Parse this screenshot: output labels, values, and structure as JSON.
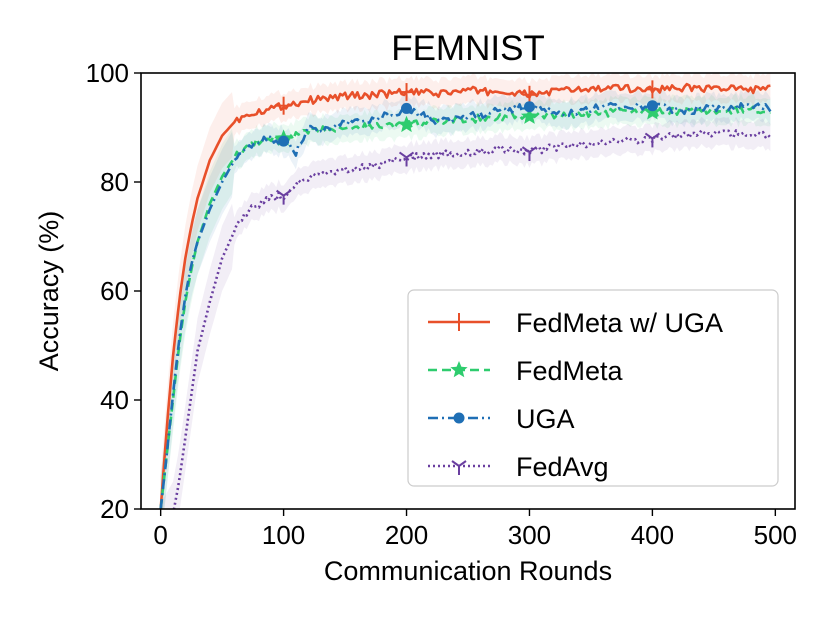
{
  "chart_data": {
    "type": "line",
    "title": "FEMNIST",
    "xlabel": "Communication Rounds",
    "ylabel": "Accuracy (%)",
    "xlim": [
      -16,
      516
    ],
    "ylim": [
      20,
      100
    ],
    "xticks": [
      0,
      100,
      200,
      300,
      400,
      500
    ],
    "yticks": [
      20,
      40,
      60,
      80,
      100
    ],
    "grid": false,
    "legend_position": "lower-right",
    "series": [
      {
        "name": "FedMeta w/ UGA",
        "color": "#e8502a",
        "linestyle": "solid",
        "marker": "plus",
        "marker_x": [
          100,
          200,
          300,
          400
        ],
        "x": [
          0,
          5,
          10,
          15,
          20,
          25,
          30,
          40,
          50,
          60,
          70,
          80,
          90,
          100,
          110,
          120,
          130,
          150,
          175,
          200,
          225,
          250,
          275,
          300,
          325,
          350,
          375,
          400,
          425,
          450,
          475,
          497
        ],
        "y": [
          20,
          35,
          48,
          58,
          66,
          72,
          77,
          84,
          88.5,
          91,
          92.5,
          93,
          93.5,
          94,
          94.5,
          95,
          95.2,
          95.8,
          96,
          96.5,
          96.2,
          96.8,
          96.5,
          96,
          96.8,
          97,
          97.2,
          97,
          97.3,
          97.2,
          97,
          97
        ]
      },
      {
        "name": "FedMeta",
        "color": "#2ecc6e",
        "linestyle": "dashed",
        "marker": "star",
        "marker_x": [
          100,
          200,
          300,
          400
        ],
        "x": [
          0,
          5,
          10,
          15,
          20,
          25,
          30,
          40,
          50,
          60,
          70,
          80,
          90,
          100,
          110,
          125,
          150,
          175,
          200,
          225,
          250,
          275,
          300,
          325,
          350,
          375,
          400,
          425,
          450,
          475,
          497
        ],
        "y": [
          20,
          30,
          40,
          50,
          58,
          64,
          69,
          76,
          81,
          84.5,
          86.5,
          87.5,
          88,
          88,
          88.5,
          89.5,
          90,
          90.3,
          90.5,
          91,
          91.5,
          92,
          92,
          92.3,
          92.5,
          92.8,
          92.8,
          93,
          93,
          93.2,
          93.2
        ]
      },
      {
        "name": "UGA",
        "color": "#1f6fb5",
        "linestyle": "dashdot",
        "marker": "circle",
        "marker_x": [
          100,
          200,
          300,
          400
        ],
        "x": [
          0,
          5,
          10,
          15,
          20,
          25,
          30,
          40,
          50,
          60,
          70,
          80,
          90,
          100,
          110,
          120,
          130,
          150,
          175,
          200,
          225,
          250,
          275,
          300,
          325,
          350,
          375,
          400,
          425,
          450,
          475,
          497
        ],
        "y": [
          20,
          30,
          41,
          51,
          59,
          65,
          69,
          75,
          80,
          84,
          86,
          87.5,
          87.8,
          87.5,
          85.5,
          90,
          89.5,
          91,
          91.5,
          93.5,
          91,
          92,
          93,
          93.8,
          92.5,
          93.5,
          94,
          94,
          93,
          93.5,
          94,
          93.5
        ]
      },
      {
        "name": "FedAvg",
        "color": "#6a3fa0",
        "linestyle": "dotted",
        "marker": "tri-down",
        "marker_x": [
          100,
          200,
          300,
          400
        ],
        "x": [
          0,
          10,
          15,
          20,
          25,
          30,
          40,
          50,
          60,
          70,
          80,
          90,
          100,
          110,
          125,
          150,
          175,
          200,
          225,
          250,
          275,
          300,
          325,
          350,
          375,
          400,
          425,
          450,
          475,
          497
        ],
        "y": [
          15,
          19,
          25,
          33,
          41,
          49,
          58,
          66,
          71,
          74.5,
          76,
          77,
          77.5,
          79.5,
          81,
          82,
          83,
          84.5,
          85,
          85.5,
          86,
          85.5,
          86.5,
          87,
          87.5,
          88,
          88.5,
          89,
          88.8,
          88.8
        ]
      }
    ]
  }
}
